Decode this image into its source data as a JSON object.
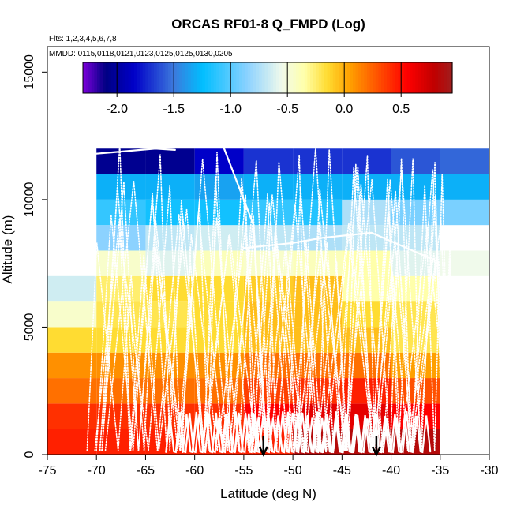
{
  "chart_data": {
    "type": "heatmap",
    "title": "ORCAS RF01-8 Q_FMPD (Log)",
    "subtitle_flights": "Flts: 1,2,3,4,5,6,7,8",
    "subtitle_dates": "MMDD: 0115,0118,0121,0123,0125,0125,0130,0205",
    "xlabel": "Latitude (deg N)",
    "ylabel": "Altitude (m)",
    "xlim": [
      -75,
      -30
    ],
    "ylim": [
      0,
      16000
    ],
    "x_ticks": [
      -75,
      -70,
      -65,
      -60,
      -55,
      -50,
      -45,
      -40,
      -35,
      -30
    ],
    "y_ticks": [
      0,
      5000,
      10000,
      15000
    ],
    "bin_width_deg": 5,
    "bin_height_m": 1000,
    "colorbar": {
      "range": [
        -2.3,
        0.95
      ],
      "ticks": [
        -2.0,
        -1.5,
        -1.0,
        -0.5,
        0.0,
        0.5
      ],
      "tick_labels": [
        "-2.0",
        "-1.5",
        "-1.0",
        "-0.5",
        "0.0",
        "0.5"
      ]
    },
    "bin_rows": [
      {
        "alt_bottom": 0,
        "x_start": -75,
        "values": [
          0.45,
          0.45,
          0.45,
          0.45,
          0.45,
          0.85,
          0.85,
          0.85
        ]
      },
      {
        "alt_bottom": 1000,
        "x_start": -75,
        "values": [
          0.4,
          0.4,
          0.4,
          0.4,
          0.55,
          0.65,
          0.65,
          0.55
        ]
      },
      {
        "alt_bottom": 2000,
        "x_start": -75,
        "values": [
          0.2,
          0.2,
          0.2,
          0.2,
          0.35,
          0.4,
          0.45,
          0.3
        ]
      },
      {
        "alt_bottom": 3000,
        "x_start": -75,
        "values": [
          0.1,
          0.1,
          0.1,
          0.1,
          0.2,
          0.2,
          0.2,
          0.05
        ]
      },
      {
        "alt_bottom": 4000,
        "x_start": -75,
        "values": [
          -0.15,
          -0.15,
          -0.15,
          -0.15,
          -0.05,
          -0.05,
          -0.05,
          -0.2
        ]
      },
      {
        "alt_bottom": 5000,
        "x_start": -75,
        "values": [
          -0.45,
          -0.2,
          -0.2,
          -0.15,
          -0.05,
          -0.05,
          -0.15,
          -0.2
        ]
      },
      {
        "alt_bottom": 6000,
        "x_start": -75,
        "values": [
          -0.65,
          -0.25,
          -0.15,
          -0.15,
          -0.1,
          -0.05,
          -0.35,
          -0.35
        ]
      },
      {
        "alt_bottom": 7000,
        "x_start": -70,
        "values": [
          -0.45,
          -0.6,
          -0.4,
          -0.45,
          -0.4,
          -0.35,
          -0.6,
          -0.55
        ]
      },
      {
        "alt_bottom": 8000,
        "x_start": -70,
        "values": [
          -0.85,
          -0.7,
          -0.65,
          -0.7,
          -0.75,
          -0.7,
          -0.7
        ]
      },
      {
        "alt_bottom": 9000,
        "x_start": -70,
        "values": [
          -1.1,
          -1.2,
          -1.2,
          -1.1,
          -1.15,
          -0.75,
          -0.9,
          -0.9
        ]
      },
      {
        "alt_bottom": 10000,
        "x_start": -70,
        "values": [
          -1.3,
          -1.3,
          -1.35,
          -1.3,
          -1.3,
          -1.3,
          -1.3,
          -1.3
        ]
      },
      {
        "alt_bottom": 11000,
        "x_start": -70,
        "values": [
          -2.05,
          -2.05,
          -1.85,
          -1.7,
          -1.7,
          -1.7,
          -1.6,
          -1.55
        ]
      }
    ],
    "annotations": [
      {
        "type": "arrow-down",
        "x": -53,
        "note": "marker at latitude"
      },
      {
        "type": "arrow-down",
        "x": -41.5,
        "note": "marker at latitude"
      }
    ],
    "flight_track_color": "#ffffff"
  }
}
